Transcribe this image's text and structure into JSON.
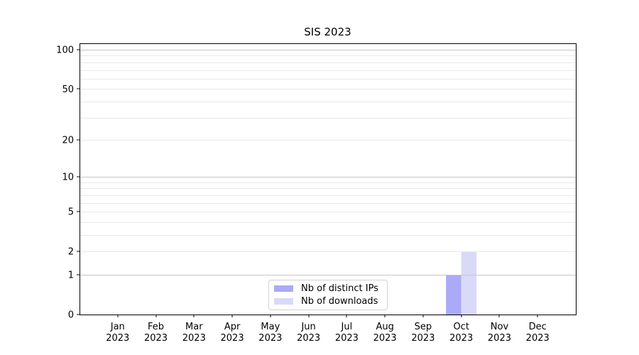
{
  "title": "SIS 2023",
  "colors": {
    "background": "#ffffff",
    "axis": "#000000",
    "grid_major": "#c5c5c5",
    "grid_minor": "#e9e9e9",
    "legend_border": "#d2d2d2",
    "text": "#000000"
  },
  "chart_data": {
    "type": "bar",
    "title": "SIS 2023",
    "categories": [
      "Jan",
      "Feb",
      "Mar",
      "Apr",
      "May",
      "Jun",
      "Jul",
      "Aug",
      "Sep",
      "Oct",
      "Nov",
      "Dec"
    ],
    "year": "2023",
    "series": [
      {
        "name": "Nb of distinct IPs",
        "color": "#aaaaf7",
        "values": [
          0,
          0,
          0,
          0,
          0,
          0,
          0,
          0,
          0,
          1,
          0,
          0
        ]
      },
      {
        "name": "Nb of downloads",
        "color": "#d9d9f8",
        "values": [
          0,
          0,
          0,
          0,
          0,
          0,
          0,
          0,
          0,
          2,
          0,
          0
        ]
      }
    ],
    "xlabel": "",
    "ylabel": "",
    "y_axis": {
      "scale": "log1p",
      "tick_values": [
        0,
        1,
        2,
        5,
        10,
        20,
        50,
        100
      ],
      "tick_labels": [
        "0",
        "1",
        "2",
        "5",
        "10",
        "20",
        "50",
        "100"
      ],
      "major_gridlines": [
        1,
        10,
        100
      ],
      "minor_gridlines": [
        2,
        3,
        4,
        5,
        6,
        7,
        8,
        9,
        20,
        30,
        40,
        50,
        60,
        70,
        80,
        90
      ],
      "max": 112
    },
    "ylim": [
      0,
      112
    ],
    "grid": true,
    "legend_position": "lower center"
  }
}
